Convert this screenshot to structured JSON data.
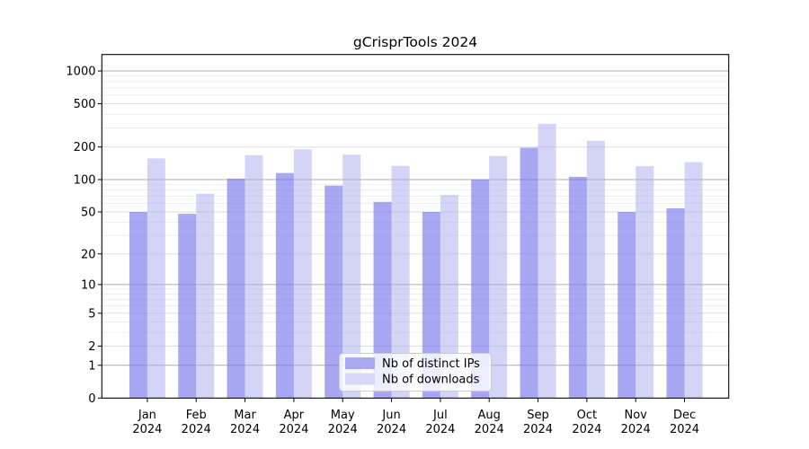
{
  "chart_data": {
    "type": "bar",
    "title": "gCrisprTools 2024",
    "categories": [
      "Jan",
      "Feb",
      "Mar",
      "Apr",
      "May",
      "Jun",
      "Jul",
      "Aug",
      "Sep",
      "Oct",
      "Nov",
      "Dec"
    ],
    "category_sublabel": "2024",
    "series": [
      {
        "name": "Nb of distinct IPs",
        "values": [
          50,
          48,
          102,
          115,
          88,
          62,
          50,
          100,
          197,
          106,
          50,
          54
        ],
        "bar_fill": "rgba(122,122,235,0.66)",
        "legend_color": "#a9a9ef"
      },
      {
        "name": "Nb of downloads",
        "values": [
          157,
          74,
          168,
          190,
          170,
          134,
          72,
          165,
          327,
          228,
          133,
          145
        ],
        "bar_fill": "rgba(170,170,240,0.5)",
        "legend_color": "#d8d8f6"
      }
    ],
    "xlabel": "",
    "ylabel": "",
    "yscale": "log1p",
    "yticks": [
      0,
      1,
      2,
      5,
      10,
      20,
      50,
      100,
      200,
      500,
      1000
    ],
    "ylim": [
      0,
      1417
    ],
    "grid": true,
    "legend_position": "lower center",
    "colors": {
      "major_grid": "#ababab",
      "labeled_grid": "#dcdcdc",
      "minor_grid": "#ececec",
      "spine": "#000000",
      "tick": "#000000",
      "text": "#000000",
      "legend_border": "#cccccc",
      "legend_bg": "rgba(255,255,255,0.8)",
      "background": "#ffffff"
    }
  }
}
